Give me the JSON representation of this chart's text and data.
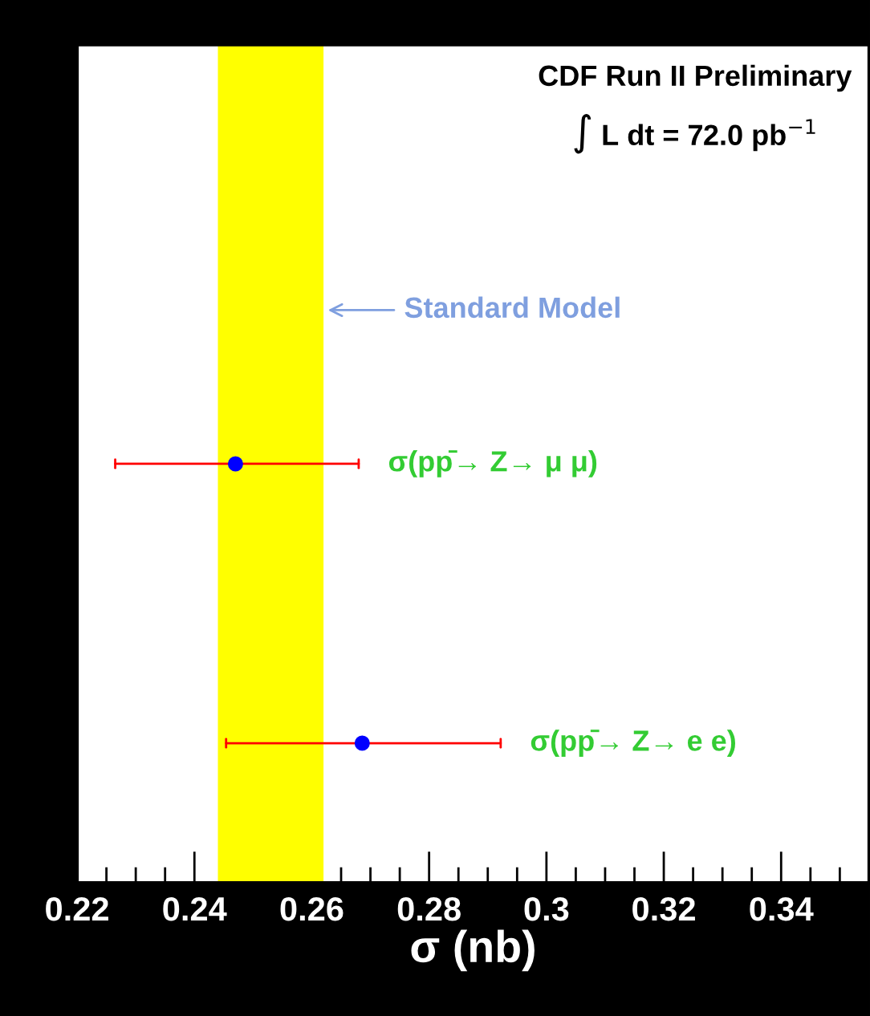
{
  "chart_data": {
    "type": "scatter",
    "orientation": "horizontal",
    "marker": "circle",
    "grid": false,
    "title": "CDF Run II Preliminary",
    "subtitle": "∫ L dt = 72.0 pb$^{−1}$",
    "xlabel": "σ (nb)",
    "categories": [
      null,
      null,
      null
    ],
    "series": [
      {
        "name": "σ(pp̄→ Z→ μ μ)",
        "color": "#0000ff",
        "values": [
          null,
          0.247,
          null
        ],
        "errors": [
          null,
          [
            0.2265,
            0.268
          ],
          null
        ]
      },
      {
        "name": "σ(pp̄→ Z→ e e)",
        "color": "#0000ff",
        "values": [
          null,
          null,
          0.2686
        ],
        "errors": [
          null,
          null,
          [
            0.2454,
            0.2922
          ]
        ]
      }
    ],
    "bands": [
      {
        "axis": "x",
        "from": 0.244,
        "to": 0.262,
        "label": "Standard Model",
        "color": "#ffff00"
      }
    ],
    "xlim": [
      0.22,
      0.355
    ],
    "xticks": [
      0.22,
      {
        "value": 0.225,
        "label": null
      },
      {
        "value": 0.23,
        "label": null
      },
      {
        "value": 0.235,
        "label": null
      },
      0.24,
      {
        "value": 0.245,
        "label": null
      },
      {
        "value": 0.25,
        "label": null
      },
      {
        "value": 0.255,
        "label": null
      },
      0.26,
      {
        "value": 0.265,
        "label": null
      },
      {
        "value": 0.27,
        "label": null
      },
      {
        "value": 0.275,
        "label": null
      },
      0.28,
      {
        "value": 0.285,
        "label": null
      },
      {
        "value": 0.29,
        "label": null
      },
      {
        "value": 0.295,
        "label": null
      },
      {
        "value": 0.3,
        "label": "0.3"
      },
      {
        "value": 0.305,
        "label": null
      },
      {
        "value": 0.31,
        "label": null
      },
      {
        "value": 0.315,
        "label": null
      },
      0.32,
      {
        "value": 0.325,
        "label": null
      },
      {
        "value": 0.33,
        "label": null
      },
      {
        "value": 0.335,
        "label": null
      },
      0.34,
      {
        "value": 0.345,
        "label": null
      },
      {
        "value": 0.35,
        "label": null
      }
    ]
  }
}
